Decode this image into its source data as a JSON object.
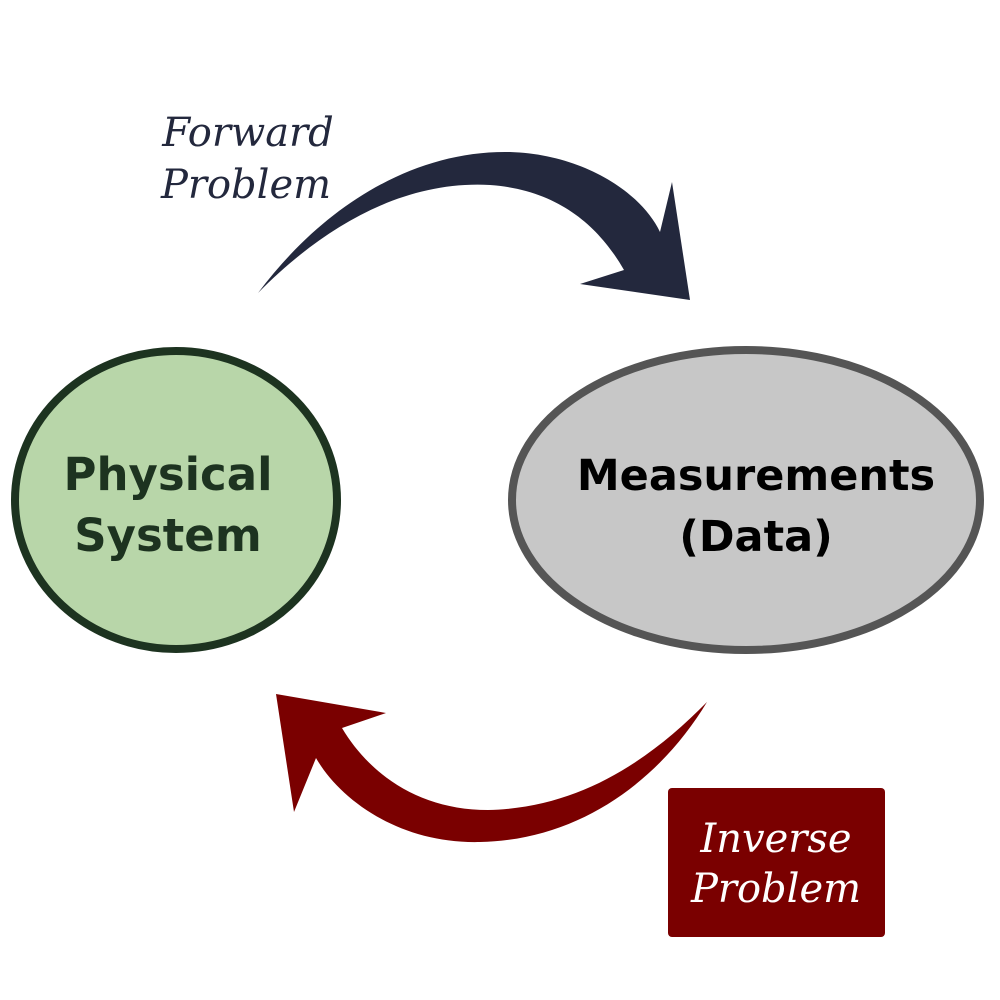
{
  "colors": {
    "background": "#ffffff",
    "physical_fill": "#b8d6a9",
    "physical_stroke": "#1d3320",
    "physical_text": "#1d3320",
    "measurements_fill": "#c7c7c7",
    "measurements_stroke": "#555555",
    "measurements_text": "#000000",
    "forward_arrow": "#23283d",
    "forward_text": "#23283d",
    "inverse_arrow": "#7a0000",
    "inverse_box": "#7a0000",
    "inverse_text": "#ffffff"
  },
  "physical_system": {
    "line1": "Physical",
    "line2": "System"
  },
  "measurements": {
    "line1": "Measurements",
    "line2": "(Data)"
  },
  "forward_problem": {
    "line1": "Forward",
    "line2": "Problem"
  },
  "inverse_problem": {
    "line1": "Inverse",
    "line2": "Problem"
  }
}
